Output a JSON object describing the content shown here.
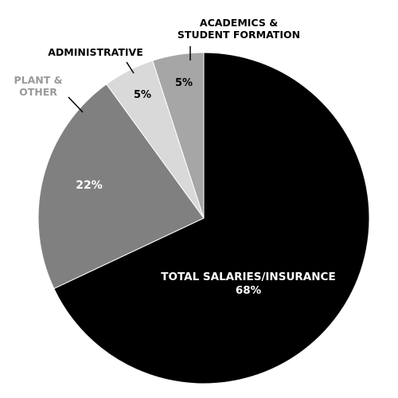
{
  "chart_data": {
    "type": "pie",
    "title": "",
    "slices": [
      {
        "outside_label_lines": [],
        "inside_label_lines": [
          "TOTAL SALARIES/INSURANCE",
          "68%"
        ],
        "percent_text": "68%",
        "value": 68,
        "color": "#000000",
        "label_color": "#ffffff",
        "leader": false
      },
      {
        "outside_label_lines": [
          "PLANT &",
          "OTHER"
        ],
        "inside_label_lines": [
          "22%"
        ],
        "percent_text": "22%",
        "value": 22,
        "color": "#808080",
        "label_color": "#ffffff",
        "outside_color": "#9a9a9a",
        "leader": true
      },
      {
        "outside_label_lines": [
          "ADMINISTRATIVE"
        ],
        "inside_label_lines": [
          "5%"
        ],
        "percent_text": "5%",
        "value": 5,
        "color": "#d9d9d9",
        "label_color": "#000000",
        "outside_color": "#000000",
        "leader": true
      },
      {
        "outside_label_lines": [
          "ACADEMICS &",
          "STUDENT FORMATION"
        ],
        "inside_label_lines": [
          "5%"
        ],
        "percent_text": "5%",
        "value": 5,
        "color": "#a6a6a6",
        "label_color": "#000000",
        "outside_color": "#000000",
        "leader": true
      }
    ]
  }
}
